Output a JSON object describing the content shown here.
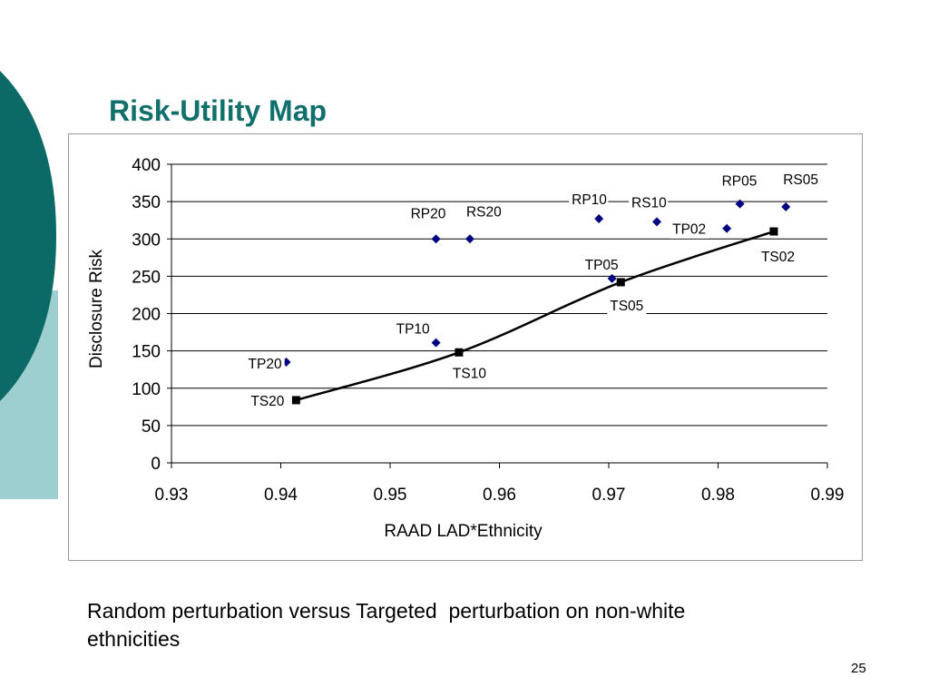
{
  "slide": {
    "title": "Risk-Utility Map",
    "caption": "Random perturbation versus Targeted  perturbation on non-white ethnicities",
    "page_number": "25"
  },
  "theme": {
    "title_color": "#11706c",
    "deco_dark": "#0b6a66",
    "deco_light": "#9ecfd0",
    "point_color": "#000080",
    "line_color": "#000000"
  },
  "chart_data": {
    "type": "scatter",
    "xlabel": "RAAD LAD*Ethnicity",
    "ylabel": "Disclosure Risk",
    "xlim": [
      0.93,
      0.99
    ],
    "ylim": [
      0,
      400
    ],
    "x_ticks": [
      "0.93",
      "0.94",
      "0.95",
      "0.96",
      "0.97",
      "0.98",
      "0.99"
    ],
    "y_ticks": [
      "0",
      "50",
      "100",
      "150",
      "200",
      "250",
      "300",
      "350",
      "400"
    ],
    "grid": true,
    "legend": "none",
    "series": [
      {
        "marker": "diamond",
        "points": [
          {
            "label": "TP20",
            "x": 0.9405,
            "y": 135
          },
          {
            "label": "TP10",
            "x": 0.9542,
            "y": 161
          },
          {
            "label": "RP20",
            "x": 0.9542,
            "y": 300
          },
          {
            "label": "RS20",
            "x": 0.9573,
            "y": 300
          },
          {
            "label": "TP05",
            "x": 0.9703,
            "y": 247
          },
          {
            "label": "RP10",
            "x": 0.9691,
            "y": 327
          },
          {
            "label": "RS10",
            "x": 0.9744,
            "y": 323
          },
          {
            "label": "TP02",
            "x": 0.9808,
            "y": 314
          },
          {
            "label": "RP05",
            "x": 0.982,
            "y": 347
          },
          {
            "label": "RS05",
            "x": 0.9862,
            "y": 343
          }
        ]
      },
      {
        "marker": "square",
        "line": "smooth",
        "points": [
          {
            "label": "TS20",
            "x": 0.9414,
            "y": 84
          },
          {
            "label": "TS10",
            "x": 0.9563,
            "y": 148
          },
          {
            "label": "TS05",
            "x": 0.9711,
            "y": 242
          },
          {
            "label": "TS02",
            "x": 0.9851,
            "y": 310
          }
        ]
      }
    ]
  }
}
